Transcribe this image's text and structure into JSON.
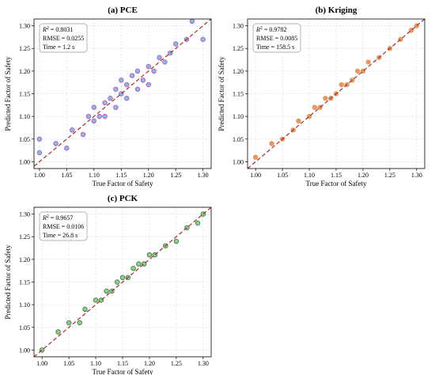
{
  "chart_data": [
    {
      "type": "scatter",
      "title": "(a) PCE",
      "xlabel": "True Factor of Safety",
      "ylabel": "Predicted Factor of Safety",
      "xlim": [
        0.99,
        1.315
      ],
      "ylim": [
        0.985,
        1.315
      ],
      "xticks": [
        "1.00",
        "1.05",
        "1.10",
        "1.15",
        "1.20",
        "1.25",
        "1.30"
      ],
      "yticks": [
        "1.00",
        "1.05",
        "1.10",
        "1.15",
        "1.20",
        "1.25",
        "1.30"
      ],
      "grid": true,
      "reference_line": "y = x",
      "marker_fill": "#6aa3c8",
      "marker_edge": "#b44fc4",
      "stats": {
        "r2_value": "0.8031",
        "rmse": "RMSE = 0.0255",
        "time": "Time = 1.2 s"
      },
      "points": {
        "x": [
          1.0,
          1.0,
          1.03,
          1.05,
          1.06,
          1.08,
          1.09,
          1.1,
          1.1,
          1.11,
          1.12,
          1.12,
          1.13,
          1.14,
          1.14,
          1.15,
          1.15,
          1.16,
          1.16,
          1.17,
          1.18,
          1.18,
          1.19,
          1.2,
          1.2,
          1.21,
          1.22,
          1.23,
          1.24,
          1.25,
          1.27,
          1.28,
          1.3
        ],
        "y": [
          1.05,
          1.02,
          1.04,
          1.03,
          1.07,
          1.06,
          1.1,
          1.09,
          1.12,
          1.1,
          1.13,
          1.1,
          1.14,
          1.12,
          1.16,
          1.15,
          1.18,
          1.14,
          1.17,
          1.19,
          1.16,
          1.2,
          1.18,
          1.21,
          1.17,
          1.2,
          1.23,
          1.22,
          1.24,
          1.26,
          1.27,
          1.31,
          1.27
        ]
      }
    },
    {
      "type": "scatter",
      "title": "(b) Kriging",
      "xlabel": "True Factor of Safety",
      "ylabel": "Predicted Factor of Safety",
      "xlim": [
        0.985,
        1.315
      ],
      "ylim": [
        0.985,
        1.315
      ],
      "xticks": [
        "1.00",
        "1.05",
        "1.10",
        "1.15",
        "1.20",
        "1.25",
        "1.30"
      ],
      "yticks": [
        "1.00",
        "1.05",
        "1.10",
        "1.15",
        "1.20",
        "1.25",
        "1.30"
      ],
      "grid": true,
      "reference_line": "y = x",
      "marker_fill": "#e8703a",
      "marker_edge": "#c9a35a",
      "stats": {
        "r2_value": "0.9782",
        "rmse": "RMSE = 0.0085",
        "time": "Time = 158.5 s"
      },
      "points": {
        "x": [
          1.0,
          1.03,
          1.05,
          1.07,
          1.08,
          1.1,
          1.11,
          1.12,
          1.13,
          1.14,
          1.15,
          1.16,
          1.17,
          1.18,
          1.19,
          1.2,
          1.21,
          1.23,
          1.25,
          1.27,
          1.29,
          1.3
        ],
        "y": [
          1.01,
          1.04,
          1.05,
          1.07,
          1.09,
          1.1,
          1.12,
          1.12,
          1.14,
          1.14,
          1.15,
          1.17,
          1.17,
          1.18,
          1.2,
          1.2,
          1.22,
          1.23,
          1.25,
          1.27,
          1.29,
          1.3
        ]
      }
    },
    {
      "type": "scatter",
      "title": "(c) PCK",
      "xlabel": "True Factor of Safety",
      "ylabel": "Predicted Factor of Safety",
      "xlim": [
        0.985,
        1.315
      ],
      "ylim": [
        0.985,
        1.315
      ],
      "xticks": [
        "1.00",
        "1.05",
        "1.10",
        "1.15",
        "1.20",
        "1.25",
        "1.30"
      ],
      "yticks": [
        "1.00",
        "1.05",
        "1.10",
        "1.15",
        "1.20",
        "1.25",
        "1.30"
      ],
      "grid": true,
      "reference_line": "y = x",
      "marker_fill": "#6cbd6c",
      "marker_edge": "#3d6b3d",
      "stats": {
        "r2_value": "0.9657",
        "rmse": "RMSE = 0.0106",
        "time": "Time = 26.8 s"
      },
      "points": {
        "x": [
          1.0,
          1.03,
          1.05,
          1.07,
          1.08,
          1.1,
          1.11,
          1.12,
          1.13,
          1.14,
          1.15,
          1.16,
          1.17,
          1.18,
          1.19,
          1.2,
          1.21,
          1.23,
          1.25,
          1.27,
          1.29,
          1.3
        ],
        "y": [
          1.0,
          1.04,
          1.06,
          1.06,
          1.09,
          1.11,
          1.11,
          1.13,
          1.13,
          1.15,
          1.16,
          1.16,
          1.18,
          1.19,
          1.19,
          1.21,
          1.21,
          1.23,
          1.24,
          1.27,
          1.28,
          1.3
        ]
      }
    }
  ]
}
